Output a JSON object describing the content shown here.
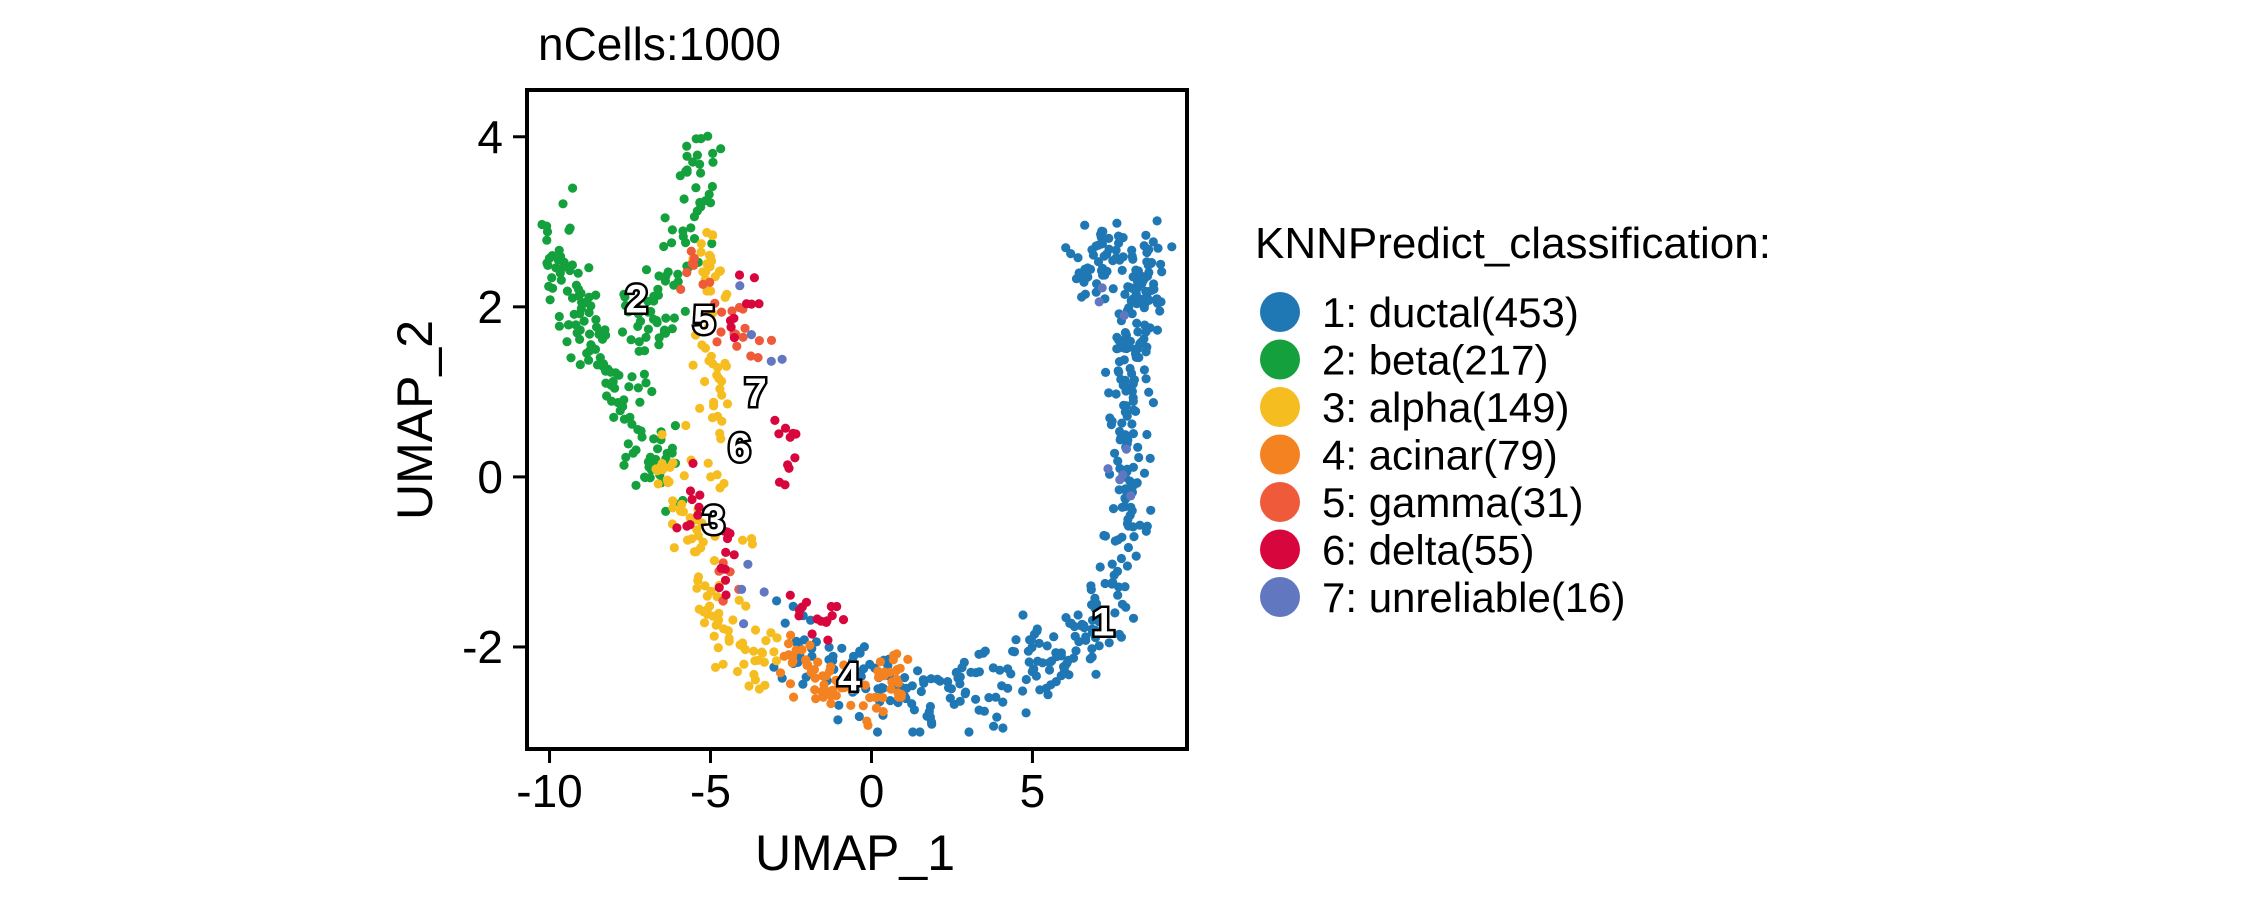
{
  "chart_data": {
    "type": "scatter",
    "title": "nCells:1000",
    "xlabel": "UMAP_1",
    "ylabel": "UMAP_2",
    "xlim": [
      -10.7,
      9.8
    ],
    "ylim": [
      -3.2,
      4.55
    ],
    "xticks": [
      -10,
      -5,
      0,
      5
    ],
    "xtick_labels": [
      "-10",
      "-5",
      "0",
      "5"
    ],
    "yticks": [
      -2,
      0,
      2,
      4
    ],
    "ytick_labels": [
      "-2",
      "0",
      "2",
      "4"
    ],
    "grid": false,
    "legend": {
      "position": "right",
      "title": "KNNPredict_classification:",
      "entries": [
        {
          "id": 1,
          "label": "1: ductal(453)",
          "name": "ductal",
          "count": 453,
          "color": "#1f77b4"
        },
        {
          "id": 2,
          "label": "2: beta(217)",
          "name": "beta",
          "count": 217,
          "color": "#14a03c"
        },
        {
          "id": 3,
          "label": "3: alpha(149)",
          "name": "alpha",
          "count": 149,
          "color": "#f5bd1f"
        },
        {
          "id": 4,
          "label": "4: acinar(79)",
          "name": "acinar",
          "count": 79,
          "color": "#f58220"
        },
        {
          "id": 5,
          "label": "5: gamma(31)",
          "name": "gamma",
          "count": 31,
          "color": "#ee5a3a"
        },
        {
          "id": 6,
          "label": "6: delta(55)",
          "name": "delta",
          "count": 55,
          "color": "#d7063c"
        },
        {
          "id": 7,
          "label": "7: unreliable(16)",
          "name": "unreliable",
          "count": 16,
          "color": "#6178c0"
        }
      ]
    },
    "cluster_labels": [
      {
        "text": "1",
        "x": 7.2,
        "y": -1.7
      },
      {
        "text": "2",
        "x": -7.3,
        "y": 2.1
      },
      {
        "text": "3",
        "x": -4.9,
        "y": -0.5
      },
      {
        "text": "4",
        "x": -0.7,
        "y": -2.35
      },
      {
        "text": "5",
        "x": -5.2,
        "y": 1.85
      },
      {
        "text": "6",
        "x": -4.1,
        "y": 0.35
      },
      {
        "text": "7",
        "x": -3.6,
        "y": 1.0
      }
    ],
    "clusters": {
      "ductal": {
        "count": 453,
        "path": [
          [
            -2.5,
            -2.0
          ],
          [
            -1.5,
            -2.2
          ],
          [
            0,
            -2.4
          ],
          [
            1.5,
            -2.55
          ],
          [
            3,
            -2.5
          ],
          [
            4.5,
            -2.3
          ],
          [
            5.6,
            -2.15
          ],
          [
            6.5,
            -1.9
          ],
          [
            7.3,
            -1.6
          ],
          [
            7.9,
            -1.0
          ],
          [
            8.0,
            -0.2
          ],
          [
            7.9,
            0.6
          ],
          [
            7.8,
            1.2
          ],
          [
            8.1,
            1.7
          ],
          [
            8.4,
            2.1
          ],
          [
            8.5,
            2.4
          ],
          [
            8.0,
            2.55
          ],
          [
            7.3,
            2.55
          ],
          [
            6.9,
            2.45
          ],
          [
            6.6,
            2.3
          ]
        ],
        "spread": 0.32
      },
      "beta": {
        "count": 217,
        "path": [
          [
            -9.8,
            2.7
          ],
          [
            -9.5,
            2.4
          ],
          [
            -9.1,
            2.0
          ],
          [
            -8.7,
            1.6
          ],
          [
            -8.1,
            1.1
          ],
          [
            -7.4,
            0.6
          ],
          [
            -6.8,
            0.2
          ],
          [
            -6.3,
            -0.1
          ],
          [
            -7.3,
            2.2
          ],
          [
            -6.8,
            1.8
          ],
          [
            -5.9,
            2.6
          ],
          [
            -5.6,
            3.3
          ],
          [
            -5.3,
            3.6
          ],
          [
            -5.3,
            4.05
          ]
        ],
        "spread": 0.28
      },
      "alpha": {
        "count": 149,
        "path": [
          [
            -6.5,
            0.2
          ],
          [
            -6.0,
            -0.3
          ],
          [
            -5.4,
            -0.8
          ],
          [
            -5.0,
            -1.4
          ],
          [
            -4.6,
            -1.8
          ],
          [
            -4.0,
            -2.1
          ],
          [
            -3.0,
            -2.3
          ],
          [
            -5.0,
            0.3
          ],
          [
            -4.9,
            1.0
          ],
          [
            -5.0,
            1.6
          ],
          [
            -5.1,
            2.3
          ],
          [
            -5.2,
            2.9
          ]
        ],
        "spread": 0.28
      },
      "acinar": {
        "count": 79,
        "path": [
          [
            -2.6,
            -2.15
          ],
          [
            -1.8,
            -2.3
          ],
          [
            -1.0,
            -2.5
          ],
          [
            -0.3,
            -2.6
          ],
          [
            0.5,
            -2.45
          ],
          [
            1.2,
            -2.3
          ]
        ],
        "spread": 0.2
      },
      "gamma": {
        "count": 31,
        "path": [
          [
            -5.6,
            2.5
          ],
          [
            -4.8,
            2.0
          ],
          [
            -4.1,
            1.8
          ],
          [
            -3.5,
            1.5
          ],
          [
            -4.6,
            -1.2
          ]
        ],
        "spread": 0.3
      },
      "delta": {
        "count": 55,
        "path": [
          [
            -2.7,
            0.5
          ],
          [
            -2.5,
            0.25
          ],
          [
            -3.8,
            2.2
          ],
          [
            -4.3,
            1.9
          ],
          [
            -5.5,
            -0.3
          ],
          [
            -4.5,
            -0.9
          ],
          [
            -2.2,
            -1.6
          ],
          [
            -1.4,
            -1.7
          ]
        ],
        "spread": 0.22
      },
      "unreliable": {
        "count": 16,
        "path": [
          [
            -4.0,
            1.9
          ],
          [
            -2.9,
            1.4
          ],
          [
            -3.8,
            -1.3
          ],
          [
            7.9,
            0.0
          ],
          [
            7.2,
            2.2
          ]
        ],
        "spread": 0.3
      }
    }
  }
}
